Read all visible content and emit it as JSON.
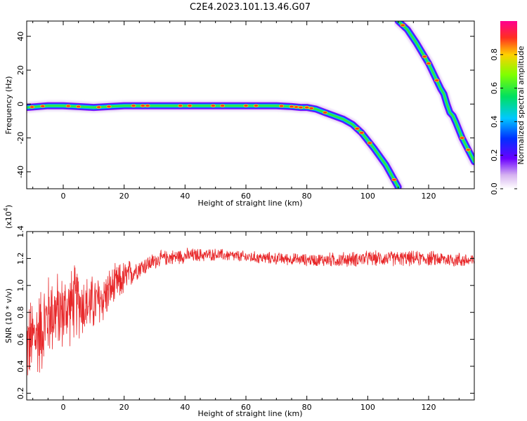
{
  "title": "C2E4.2023.101.13.46.G07",
  "colors": {
    "snr_line": "#e8282a",
    "frame": "#000000"
  },
  "chart_data": [
    {
      "type": "heatmap",
      "xlabel": "Height of straight line (km)",
      "ylabel": "Frequency (Hz)",
      "xlim": [
        -12,
        135
      ],
      "ylim": [
        -50,
        49
      ],
      "x_ticks": [
        0,
        20,
        40,
        60,
        80,
        100,
        120
      ],
      "y_ticks": [
        -40,
        -20,
        0,
        20,
        40
      ],
      "y_tick_labels": [
        "-40",
        "-20",
        "0",
        "20",
        "40"
      ],
      "colorbar": {
        "label": "Normalized spectral amplitude",
        "range": [
          0,
          1
        ],
        "ticks": [
          0,
          0.2,
          0.4,
          0.6,
          0.8
        ],
        "tick_labels": [
          "0.0",
          "0.2",
          "0.4",
          "0.6",
          "0.8"
        ],
        "colormap": "rainbow"
      },
      "ridges": [
        {
          "name": "main",
          "points": [
            [
              -12,
              -2
            ],
            [
              -5,
              -1
            ],
            [
              0,
              -1
            ],
            [
              5,
              -1.5
            ],
            [
              10,
              -2
            ],
            [
              15,
              -1.5
            ],
            [
              20,
              -1
            ],
            [
              40,
              -1
            ],
            [
              60,
              -1
            ],
            [
              70,
              -1
            ],
            [
              75,
              -1.5
            ],
            [
              78,
              -2
            ],
            [
              80,
              -2
            ],
            [
              83,
              -3
            ],
            [
              86,
              -5
            ],
            [
              89,
              -7
            ],
            [
              92,
              -9
            ],
            [
              95,
              -12
            ],
            [
              98,
              -17
            ],
            [
              102,
              -26
            ],
            [
              106,
              -36
            ],
            [
              110,
              -49
            ]
          ]
        },
        {
          "name": "alias",
          "points": [
            [
              110,
              49
            ],
            [
              113,
              44
            ],
            [
              116,
              36
            ],
            [
              120,
              24
            ],
            [
              124,
              9
            ],
            [
              125,
              6
            ],
            [
              126,
              0
            ],
            [
              127,
              -5
            ],
            [
              128,
              -7
            ],
            [
              129,
              -11
            ],
            [
              131,
              -20
            ],
            [
              133,
              -27
            ],
            [
              135,
              -34
            ]
          ]
        }
      ]
    },
    {
      "type": "line",
      "xlabel": "Height of straight line (km)",
      "ylabel": "SNR (10 * v/v)",
      "y_multiplier_label": "(x10",
      "y_multiplier_exp": "4",
      "xlim": [
        -12,
        135
      ],
      "ylim": [
        0.15,
        1.4
      ],
      "x_ticks": [
        0,
        20,
        40,
        60,
        80,
        100,
        120
      ],
      "y_ticks": [
        0.2,
        0.4,
        0.6,
        0.8,
        1.0,
        1.2,
        1.4
      ],
      "y_tick_labels": [
        "0.2",
        "0.4",
        "0.6",
        "0.8",
        "1.0",
        "1.2",
        "1.4"
      ],
      "series": [
        {
          "name": "SNR",
          "envelope_x": [
            -12,
            -8,
            -4,
            0,
            4,
            8,
            12,
            16,
            20,
            24,
            28,
            32,
            36,
            40,
            50,
            60,
            70,
            80,
            90,
            100,
            110,
            120,
            130,
            135
          ],
          "envelope_mean": [
            0.55,
            0.65,
            0.8,
            0.8,
            0.88,
            0.85,
            0.88,
            0.98,
            1.05,
            1.12,
            1.16,
            1.2,
            1.21,
            1.22,
            1.23,
            1.21,
            1.2,
            1.19,
            1.19,
            1.2,
            1.2,
            1.2,
            1.19,
            1.18
          ],
          "envelope_spread": [
            0.28,
            0.3,
            0.28,
            0.25,
            0.25,
            0.2,
            0.18,
            0.14,
            0.12,
            0.07,
            0.06,
            0.05,
            0.05,
            0.05,
            0.04,
            0.04,
            0.04,
            0.04,
            0.05,
            0.05,
            0.05,
            0.05,
            0.05,
            0.05
          ],
          "samples": 1500
        }
      ]
    }
  ]
}
